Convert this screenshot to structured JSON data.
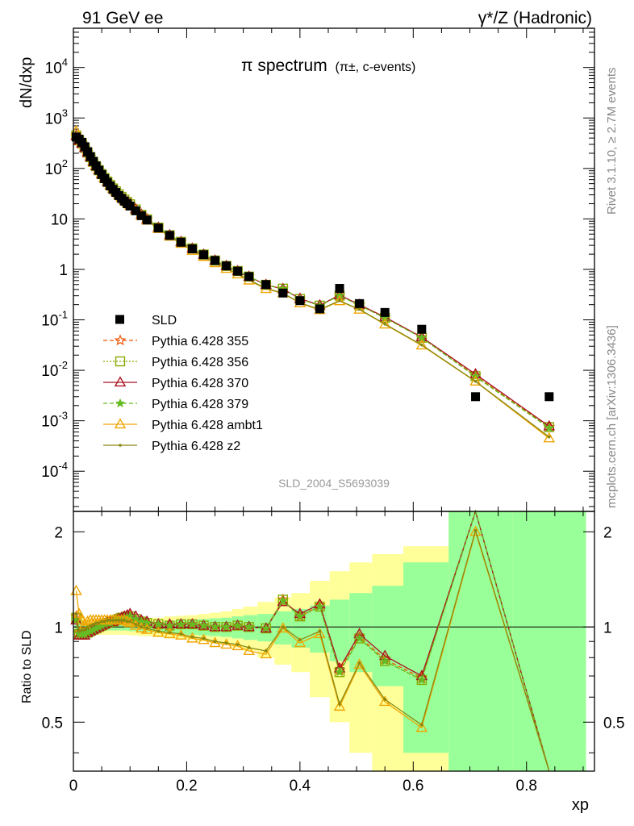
{
  "header": {
    "left": "91 GeV ee",
    "right": "γ*/Z (Hadronic)"
  },
  "side_labels": {
    "rivet": "Rivet 3.1.10, ≥ 2.7M events",
    "mcplots": "mcplots.cern.ch [arXiv:1306.3436]"
  },
  "chart_data": {
    "type": "scatter",
    "title": "π spectrum",
    "title_suffix": "(π±, c-events)",
    "analysis_id": "SLD_2004_S5693039",
    "xlabel": "xp",
    "ylabel": "dN/dxp",
    "ratio_ylabel": "Ratio to SLD",
    "xlim": [
      0,
      0.92
    ],
    "ylim": [
      1.6e-05,
      60000
    ],
    "yscale": "log",
    "ratio_ylim": [
      0.35,
      2.32
    ],
    "x_ticks": [
      "0",
      "0.2",
      "0.4",
      "0.6",
      "0.8"
    ],
    "y_ticks": [
      "10^-4",
      "10^-3",
      "10^-2",
      "10^-1",
      "1",
      "10",
      "10^2",
      "10^3",
      "10^4"
    ],
    "ratio_ticks": [
      "0.5",
      "1",
      "2"
    ],
    "legend_position": "middle-left",
    "x": [
      0.005,
      0.01,
      0.015,
      0.02,
      0.025,
      0.03,
      0.035,
      0.04,
      0.045,
      0.05,
      0.055,
      0.06,
      0.065,
      0.07,
      0.075,
      0.08,
      0.085,
      0.09,
      0.095,
      0.1,
      0.11,
      0.12,
      0.13,
      0.15,
      0.17,
      0.19,
      0.21,
      0.23,
      0.25,
      0.27,
      0.29,
      0.31,
      0.34,
      0.37,
      0.4,
      0.435,
      0.47,
      0.505,
      0.55,
      0.615,
      0.71,
      0.84
    ],
    "reference": {
      "name": "SLD",
      "values": [
        420,
        380,
        330,
        270,
        215,
        172,
        138,
        112,
        92,
        76,
        63,
        53,
        45,
        38.5,
        33.5,
        29,
        25.5,
        22.5,
        20,
        18,
        14.5,
        11.6,
        9.5,
        6.6,
        4.7,
        3.45,
        2.55,
        1.95,
        1.5,
        1.17,
        0.92,
        0.72,
        0.5,
        0.34,
        0.24,
        0.165,
        0.42,
        0.21,
        0.14,
        0.065,
        0.003,
        0.003
      ]
    },
    "ratio_band_stat": [
      0.04,
      0.04,
      0.035,
      0.03,
      0.03,
      0.025,
      0.025,
      0.025,
      0.025,
      0.025,
      0.025,
      0.025,
      0.025,
      0.025,
      0.025,
      0.025,
      0.025,
      0.025,
      0.025,
      0.03,
      0.03,
      0.03,
      0.035,
      0.04,
      0.045,
      0.05,
      0.055,
      0.06,
      0.065,
      0.07,
      0.08,
      0.09,
      0.1,
      0.12,
      0.14,
      0.17,
      0.22,
      0.28,
      0.35,
      0.6,
      2.0,
      2.0
    ],
    "ratio_band_total": [
      0.08,
      0.07,
      0.065,
      0.06,
      0.06,
      0.06,
      0.055,
      0.055,
      0.055,
      0.055,
      0.055,
      0.055,
      0.055,
      0.055,
      0.055,
      0.055,
      0.055,
      0.055,
      0.055,
      0.06,
      0.06,
      0.065,
      0.065,
      0.07,
      0.08,
      0.085,
      0.09,
      0.1,
      0.11,
      0.12,
      0.14,
      0.16,
      0.2,
      0.24,
      0.28,
      0.4,
      0.5,
      0.6,
      0.7,
      0.8,
      2.0,
      2.0
    ],
    "series": [
      {
        "name": "Pythia 6.428 355",
        "color": "#ee5500",
        "dash": "5,3",
        "marker": "star-open",
        "ratio": [
          1.08,
          0.96,
          0.96,
          0.95,
          0.97,
          0.98,
          0.99,
          1.0,
          1.01,
          1.02,
          1.02,
          1.03,
          1.04,
          1.05,
          1.06,
          1.06,
          1.07,
          1.07,
          1.08,
          1.08,
          1.06,
          1.04,
          1.03,
          1.02,
          1.01,
          1.02,
          1.02,
          1.01,
          1.0,
          1.0,
          1.01,
          1.0,
          0.99,
          1.22,
          1.08,
          1.17,
          0.73,
          0.93,
          0.79,
          0.69,
          2.6,
          0.25
        ]
      },
      {
        "name": "Pythia 6.428 356",
        "color": "#88aa00",
        "dash": "2,2",
        "marker": "square-open",
        "ratio": [
          1.07,
          0.95,
          0.95,
          0.95,
          0.96,
          0.97,
          0.98,
          0.99,
          1.0,
          1.01,
          1.02,
          1.03,
          1.04,
          1.04,
          1.05,
          1.06,
          1.07,
          1.07,
          1.08,
          1.08,
          1.06,
          1.04,
          1.03,
          1.02,
          1.01,
          1.02,
          1.02,
          1.01,
          1.0,
          1.0,
          1.01,
          1.0,
          0.99,
          1.22,
          1.08,
          1.16,
          0.72,
          0.92,
          0.78,
          0.68,
          2.55,
          0.25
        ]
      },
      {
        "name": "Pythia 6.428 370",
        "color": "#aa1122",
        "dash": "",
        "marker": "triangle-open",
        "ratio": [
          1.05,
          0.94,
          0.94,
          0.94,
          0.96,
          0.97,
          0.98,
          0.99,
          1.0,
          1.01,
          1.02,
          1.03,
          1.04,
          1.04,
          1.05,
          1.06,
          1.07,
          1.08,
          1.09,
          1.1,
          1.08,
          1.05,
          1.04,
          1.02,
          1.02,
          1.02,
          1.02,
          1.01,
          1.0,
          1.0,
          1.01,
          1.0,
          0.99,
          1.2,
          1.1,
          1.18,
          0.74,
          0.95,
          0.81,
          0.7,
          2.8,
          0.26
        ]
      },
      {
        "name": "Pythia 6.428 379",
        "color": "#66bb22",
        "dash": "5,3",
        "marker": "star",
        "ratio": [
          1.06,
          0.95,
          0.95,
          0.95,
          0.96,
          0.97,
          0.98,
          0.99,
          1.0,
          1.01,
          1.02,
          1.03,
          1.03,
          1.04,
          1.05,
          1.06,
          1.06,
          1.07,
          1.07,
          1.08,
          1.06,
          1.04,
          1.03,
          1.02,
          1.01,
          1.02,
          1.02,
          1.01,
          1.0,
          1.0,
          1.01,
          1.0,
          0.99,
          1.21,
          1.08,
          1.16,
          0.72,
          0.92,
          0.78,
          0.68,
          2.5,
          0.24
        ]
      },
      {
        "name": "Pythia 6.428 ambt1",
        "color": "#f0a500",
        "dash": "",
        "marker": "triangle-open",
        "ratio": [
          1.3,
          1.1,
          1.05,
          1.02,
          1.04,
          1.05,
          1.05,
          1.05,
          1.05,
          1.05,
          1.05,
          1.05,
          1.05,
          1.05,
          1.05,
          1.05,
          1.05,
          1.05,
          1.04,
          1.03,
          1.01,
          0.99,
          0.98,
          0.96,
          0.95,
          0.94,
          0.92,
          0.91,
          0.89,
          0.88,
          0.87,
          0.84,
          0.82,
          0.99,
          0.89,
          0.95,
          0.56,
          0.76,
          0.58,
          0.48,
          2.0,
          0.15
        ]
      },
      {
        "name": "Pythia 6.428 z2",
        "color": "#888811",
        "dash": "",
        "marker": "dot",
        "ratio": [
          1.1,
          0.97,
          0.98,
          0.98,
          1.0,
          1.01,
          1.02,
          1.03,
          1.03,
          1.04,
          1.04,
          1.05,
          1.05,
          1.05,
          1.05,
          1.05,
          1.05,
          1.05,
          1.04,
          1.04,
          1.02,
          1.0,
          0.99,
          0.97,
          0.96,
          0.95,
          0.93,
          0.92,
          0.9,
          0.89,
          0.88,
          0.86,
          0.84,
          1.0,
          0.91,
          0.97,
          0.57,
          0.77,
          0.59,
          0.49,
          2.02,
          0.16
        ]
      }
    ]
  }
}
